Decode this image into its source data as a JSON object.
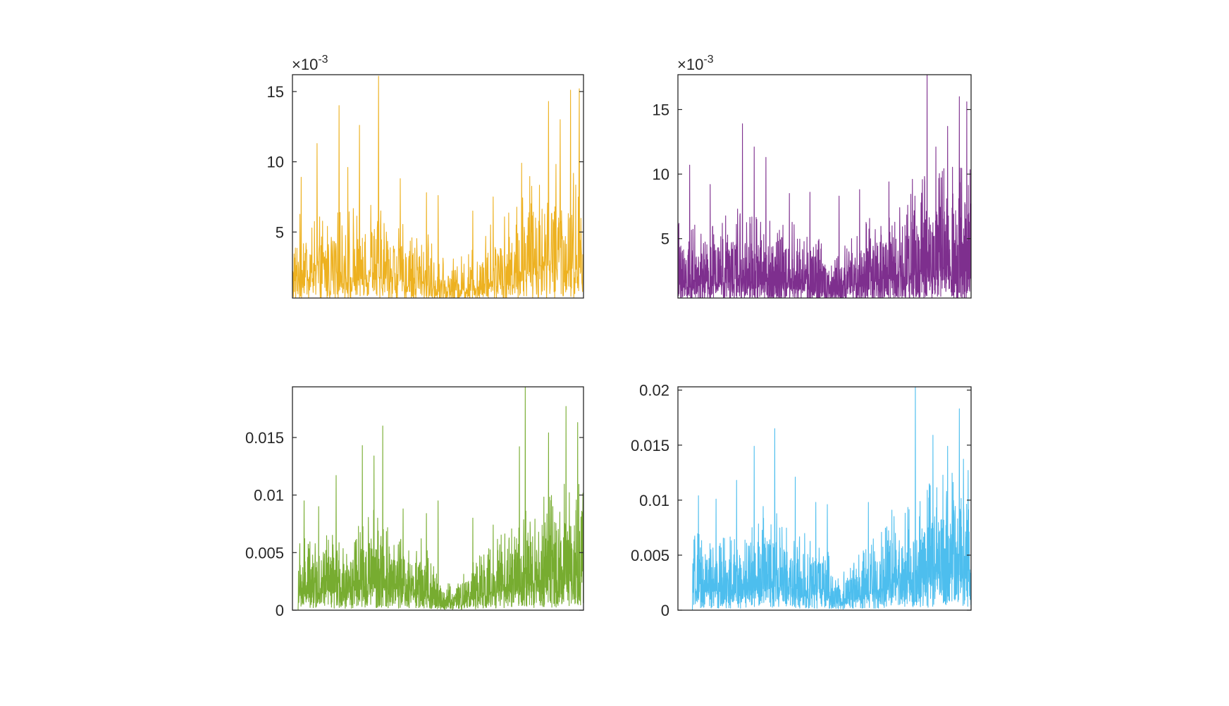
{
  "chart_data": [
    {
      "type": "line",
      "color": "#EDB120",
      "exponent_label": {
        "prefix": "×10",
        "power": "-3"
      },
      "ylim": [
        0.0003,
        0.0162
      ],
      "ytick_values": [
        0.005,
        0.01,
        0.015
      ],
      "ytick_labels": [
        "5",
        "10",
        "15"
      ],
      "x_ticks": "none",
      "n_samples": 900,
      "baseline_start": 0,
      "profile": [
        [
          0.0,
          2.6
        ],
        [
          0.05,
          3.1
        ],
        [
          0.1,
          2.8
        ],
        [
          0.2,
          3.0
        ],
        [
          0.27,
          3.6
        ],
        [
          0.35,
          2.7
        ],
        [
          0.45,
          2.5
        ],
        [
          0.52,
          1.4
        ],
        [
          0.58,
          1.6
        ],
        [
          0.65,
          2.3
        ],
        [
          0.75,
          3.3
        ],
        [
          0.85,
          4.8
        ],
        [
          1.0,
          4.3
        ]
      ],
      "spikes": [
        [
          0.03,
          8.9
        ],
        [
          0.085,
          11.3
        ],
        [
          0.16,
          14.0
        ],
        [
          0.19,
          9.6
        ],
        [
          0.23,
          12.6
        ],
        [
          0.296,
          16.1
        ],
        [
          0.37,
          8.8
        ],
        [
          0.46,
          7.8
        ],
        [
          0.5,
          7.6
        ],
        [
          0.62,
          6.5
        ],
        [
          0.69,
          7.5
        ],
        [
          0.787,
          9.9
        ],
        [
          0.88,
          14.3
        ],
        [
          0.92,
          13.0
        ],
        [
          0.955,
          15.1
        ],
        [
          0.985,
          15.2
        ]
      ]
    },
    {
      "type": "line",
      "color": "#7E2F8E",
      "exponent_label": {
        "prefix": "×10",
        "power": "-3"
      },
      "ylim": [
        0.0004,
        0.0177
      ],
      "ytick_values": [
        0.005,
        0.01,
        0.015
      ],
      "ytick_labels": [
        "5",
        "10",
        "15"
      ],
      "x_ticks": "none",
      "n_samples": 1500,
      "baseline_start": 0,
      "profile": [
        [
          0.0,
          3.0
        ],
        [
          0.1,
          2.6
        ],
        [
          0.2,
          3.4
        ],
        [
          0.3,
          3.0
        ],
        [
          0.45,
          2.8
        ],
        [
          0.52,
          1.6
        ],
        [
          0.58,
          2.2
        ],
        [
          0.65,
          3.0
        ],
        [
          0.75,
          3.6
        ],
        [
          0.85,
          4.6
        ],
        [
          1.0,
          5.2
        ]
      ],
      "spikes": [
        [
          0.04,
          10.7
        ],
        [
          0.11,
          9.2
        ],
        [
          0.22,
          13.9
        ],
        [
          0.26,
          12.1
        ],
        [
          0.3,
          11.3
        ],
        [
          0.38,
          8.5
        ],
        [
          0.45,
          8.6
        ],
        [
          0.55,
          8.3
        ],
        [
          0.62,
          8.8
        ],
        [
          0.72,
          9.4
        ],
        [
          0.8,
          9.6
        ],
        [
          0.85,
          17.7
        ],
        [
          0.88,
          12.1
        ],
        [
          0.92,
          13.7
        ],
        [
          0.96,
          16.0
        ],
        [
          0.985,
          15.6
        ]
      ]
    },
    {
      "type": "line",
      "color": "#77AC30",
      "exponent_label": null,
      "ylim": [
        0,
        0.0194
      ],
      "ytick_values": [
        0,
        0.005,
        0.01,
        0.015
      ],
      "ytick_labels": [
        "0",
        "0.005",
        "0.01",
        "0.015"
      ],
      "x_ticks": "none",
      "n_samples": 1500,
      "baseline_start": 0.02,
      "profile": [
        [
          0.0,
          2.8
        ],
        [
          0.1,
          3.2
        ],
        [
          0.2,
          2.8
        ],
        [
          0.27,
          4.2
        ],
        [
          0.35,
          3.2
        ],
        [
          0.45,
          2.9
        ],
        [
          0.52,
          1.1
        ],
        [
          0.58,
          1.4
        ],
        [
          0.65,
          2.3
        ],
        [
          0.75,
          3.3
        ],
        [
          0.85,
          4.6
        ],
        [
          1.0,
          5.8
        ]
      ],
      "spikes": [
        [
          0.04,
          9.5
        ],
        [
          0.09,
          9.0
        ],
        [
          0.15,
          11.7
        ],
        [
          0.24,
          14.3
        ],
        [
          0.28,
          13.4
        ],
        [
          0.31,
          16.0
        ],
        [
          0.38,
          8.8
        ],
        [
          0.46,
          8.4
        ],
        [
          0.5,
          9.5
        ],
        [
          0.62,
          8.0
        ],
        [
          0.69,
          7.4
        ],
        [
          0.78,
          14.2
        ],
        [
          0.8,
          19.4
        ],
        [
          0.88,
          15.4
        ],
        [
          0.94,
          17.7
        ],
        [
          0.98,
          16.3
        ]
      ]
    },
    {
      "type": "line",
      "color": "#4DBEEE",
      "exponent_label": null,
      "ylim": [
        0,
        0.0203
      ],
      "ytick_values": [
        0,
        0.005,
        0.01,
        0.015,
        0.02
      ],
      "ytick_labels": [
        "0",
        "0.005",
        "0.01",
        "0.015",
        "0.02"
      ],
      "x_ticks": "none",
      "n_samples": 1500,
      "baseline_start": 0.05,
      "profile": [
        [
          0.0,
          3.0
        ],
        [
          0.1,
          3.3
        ],
        [
          0.2,
          3.0
        ],
        [
          0.3,
          4.5
        ],
        [
          0.4,
          3.4
        ],
        [
          0.5,
          3.2
        ],
        [
          0.53,
          1.3
        ],
        [
          0.6,
          2.1
        ],
        [
          0.7,
          3.4
        ],
        [
          0.8,
          4.7
        ],
        [
          0.9,
          5.6
        ],
        [
          1.0,
          6.6
        ]
      ],
      "spikes": [
        [
          0.07,
          10.4
        ],
        [
          0.13,
          10.1
        ],
        [
          0.2,
          11.8
        ],
        [
          0.26,
          14.9
        ],
        [
          0.33,
          16.5
        ],
        [
          0.4,
          12.1
        ],
        [
          0.47,
          9.8
        ],
        [
          0.51,
          9.6
        ],
        [
          0.65,
          9.8
        ],
        [
          0.73,
          9.1
        ],
        [
          0.81,
          20.3
        ],
        [
          0.87,
          15.9
        ],
        [
          0.92,
          14.9
        ],
        [
          0.96,
          18.3
        ],
        [
          0.99,
          12.7
        ]
      ]
    }
  ]
}
